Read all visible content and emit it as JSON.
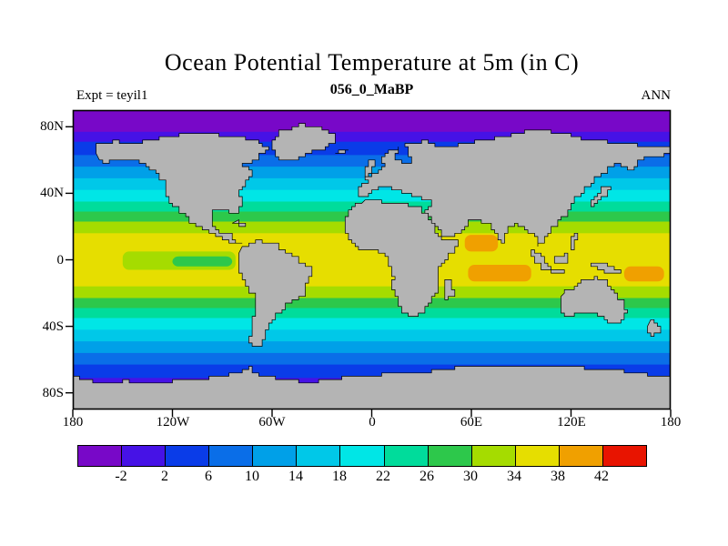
{
  "header": {
    "title": "Ocean Potential Temperature at 5m (in C)",
    "subtitle": "056_0_MaBP",
    "experiment_label": "Expt = teyil1",
    "season_label": "ANN"
  },
  "axes": {
    "lat_ticks": [
      {
        "label": "80N",
        "lat": 80
      },
      {
        "label": "40N",
        "lat": 40
      },
      {
        "label": "0",
        "lat": 0
      },
      {
        "label": "40S",
        "lat": -40
      },
      {
        "label": "80S",
        "lat": -80
      }
    ],
    "lon_ticks": [
      {
        "label": "180",
        "lon": -180
      },
      {
        "label": "120W",
        "lon": -120
      },
      {
        "label": "60W",
        "lon": -60
      },
      {
        "label": "0",
        "lon": 0
      },
      {
        "label": "60E",
        "lon": 60
      },
      {
        "label": "120E",
        "lon": 120
      },
      {
        "label": "180",
        "lon": 180
      }
    ]
  },
  "colorbar": {
    "labels": [
      "-2",
      "2",
      "6",
      "10",
      "14",
      "18",
      "22",
      "26",
      "30",
      "34",
      "38",
      "42"
    ]
  },
  "chart_data": {
    "type": "heatmap",
    "title": "Ocean Potential Temperature at 5m (in C)",
    "subtitle": "056_0_MaBP",
    "experiment": "teyil1",
    "period": "ANN",
    "variable": "Ocean Potential Temperature at 5m",
    "units": "C",
    "projection": "equirectangular",
    "lon_range": [
      -180,
      180
    ],
    "lat_range": [
      -90,
      90
    ],
    "levels": [
      -2,
      2,
      6,
      10,
      14,
      18,
      22,
      26,
      30,
      34,
      38,
      42
    ],
    "palette": [
      "#7808C8",
      "#4612E6",
      "#0A3CE8",
      "#0A6EE8",
      "#00A0E8",
      "#00C8E8",
      "#00E6E6",
      "#00DC9B",
      "#2DC84B",
      "#A5DC00",
      "#E6DE00",
      "#F0A000",
      "#E81400"
    ],
    "land_color": "#b4b4b4",
    "frame_color": "#000000",
    "zonal_bands": [
      {
        "lat_from": 90,
        "lat_to": 77,
        "color_index": 0
      },
      {
        "lat_from": 77,
        "lat_to": 71,
        "color_index": 1
      },
      {
        "lat_from": 71,
        "lat_to": 63,
        "color_index": 2
      },
      {
        "lat_from": 63,
        "lat_to": 56,
        "color_index": 3
      },
      {
        "lat_from": 56,
        "lat_to": 49,
        "color_index": 4
      },
      {
        "lat_from": 49,
        "lat_to": 42,
        "color_index": 5
      },
      {
        "lat_from": 42,
        "lat_to": 35,
        "color_index": 6
      },
      {
        "lat_from": 35,
        "lat_to": 29,
        "color_index": 7
      },
      {
        "lat_from": 29,
        "lat_to": 23,
        "color_index": 8
      },
      {
        "lat_from": 23,
        "lat_to": 16,
        "color_index": 9
      },
      {
        "lat_from": 16,
        "lat_to": -16,
        "color_index": 10
      },
      {
        "lat_from": -16,
        "lat_to": -23,
        "color_index": 9
      },
      {
        "lat_from": -23,
        "lat_to": -29,
        "color_index": 8
      },
      {
        "lat_from": -29,
        "lat_to": -35,
        "color_index": 7
      },
      {
        "lat_from": -35,
        "lat_to": -42,
        "color_index": 6
      },
      {
        "lat_from": -42,
        "lat_to": -49,
        "color_index": 5
      },
      {
        "lat_from": -49,
        "lat_to": -56,
        "color_index": 4
      },
      {
        "lat_from": -56,
        "lat_to": -63,
        "color_index": 3
      },
      {
        "lat_from": -63,
        "lat_to": -71,
        "color_index": 2
      },
      {
        "lat_from": -71,
        "lat_to": -90,
        "color_index": 1
      }
    ],
    "features": [
      {
        "name": "east-pacific-cold-tongue",
        "lon_from": -150,
        "lon_to": -82,
        "lat_from": 5,
        "lat_to": -6,
        "color_index": 9
      },
      {
        "name": "east-pacific-cold-tongue-core",
        "lon_from": -120,
        "lon_to": -84,
        "lat_from": 2,
        "lat_to": -4,
        "color_index": 8
      },
      {
        "name": "arabian-sea-warm-patch",
        "lon_from": 56,
        "lon_to": 76,
        "lat_from": 15,
        "lat_to": 5,
        "color_index": 11
      },
      {
        "name": "south-indian-warm-patch",
        "lon_from": 58,
        "lon_to": 96,
        "lat_from": -3,
        "lat_to": -13,
        "color_index": 11
      },
      {
        "name": "west-pacific-warm-patch",
        "lon_from": 152,
        "lon_to": 176,
        "lat_from": -4,
        "lat_to": -13,
        "color_index": 11
      }
    ]
  }
}
